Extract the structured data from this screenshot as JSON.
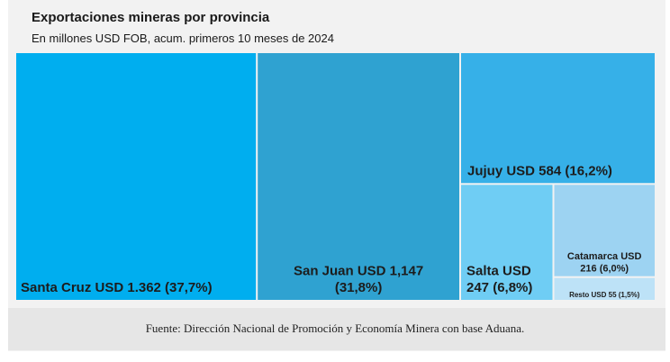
{
  "header": {
    "title": "Exportaciones mineras por provincia",
    "subtitle": "En millones USD FOB, acum. primeros 10 meses de 2024"
  },
  "footer": {
    "source": "Fuente: Dirección Nacional de Promoción y Economía Minera con base Aduana."
  },
  "chart_data": {
    "type": "treemap",
    "title": "Exportaciones mineras por provincia",
    "subtitle": "En millones USD FOB, acum. primeros 10 meses de 2024",
    "unit": "millones USD FOB",
    "items": [
      {
        "name": "Santa Cruz",
        "value": 1362,
        "share": 37.7,
        "color": "#00aeef",
        "label_lines": [
          "Santa Cruz USD 1.362 (37,7%)"
        ]
      },
      {
        "name": "San Juan",
        "value": 1147,
        "share": 31.8,
        "color": "#2fa2d1",
        "label_lines": [
          "San Juan USD 1,147",
          "(31,8%)"
        ]
      },
      {
        "name": "Jujuy",
        "value": 584,
        "share": 16.2,
        "color": "#36b0e8",
        "label_lines": [
          "Jujuy USD 584 (16,2%)"
        ]
      },
      {
        "name": "Salta",
        "value": 247,
        "share": 6.8,
        "color": "#6fcdf4",
        "label_lines": [
          "Salta USD",
          "247 (6,8%)"
        ]
      },
      {
        "name": "Catamarca",
        "value": 216,
        "share": 6.0,
        "color": "#9dd3f2",
        "label_lines": [
          "Catamarca USD",
          "216 (6,0%)"
        ]
      },
      {
        "name": "Resto",
        "value": 55,
        "share": 1.5,
        "color": "#bde2f7",
        "label_lines": [
          "Resto USD 55 (1,5%)"
        ]
      }
    ]
  }
}
